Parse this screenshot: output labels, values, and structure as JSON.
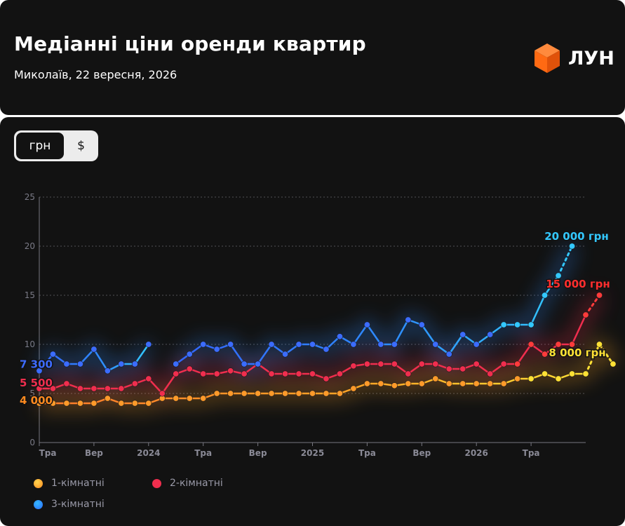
{
  "header": {
    "title": "Медіанні ціни оренди квартир",
    "subtitle": "Миколаїв, 22 вересня, 2026",
    "brand": "ЛУН"
  },
  "toggle": {
    "active_label": "грн",
    "inactive_label": "$"
  },
  "colors": {
    "background": "#121212",
    "one_room": "#FFA726",
    "one_room_alt": "#FFD54F",
    "two_room": "#F02E4E",
    "three_room": "#2E8BFF",
    "three_room_alt": "#33B9FF",
    "logo_orange": "#FF6A13"
  },
  "legend": [
    {
      "label": "1-кімнатні",
      "color": "#FFA726"
    },
    {
      "label": "2-кімнатні",
      "color": "#F02E4E"
    },
    {
      "label": "3-кімнатні",
      "color": "#2E8BFF"
    }
  ],
  "chart_data": {
    "type": "line",
    "ylim": [
      0,
      25
    ],
    "yticks": [
      "0",
      "5",
      "10",
      "15",
      "20",
      "25"
    ],
    "grid": true,
    "legend_position": "bottom-left",
    "xticks": [
      "Тра",
      "Вер",
      "2024",
      "Тра",
      "Вер",
      "2025",
      "Тра",
      "Вер",
      "2026",
      "Тра"
    ],
    "series": [
      {
        "name": "1-кімнатні",
        "values": [
          4,
          4,
          4,
          4,
          4,
          4.5,
          4,
          4,
          4,
          4.5,
          4.5,
          4.5,
          4.5,
          5,
          5,
          5,
          5,
          5,
          5,
          5,
          5,
          5,
          5,
          5.5,
          6,
          6,
          5.8,
          6,
          6,
          6.5,
          6,
          6,
          6,
          6,
          6,
          6.5,
          6.5,
          7,
          6.5,
          7,
          7,
          10,
          8
        ],
        "start_label": "4 000",
        "end_label": "8 000 грн"
      },
      {
        "name": "2-кімнатні",
        "values": [
          5.5,
          5.5,
          6,
          5.5,
          5.5,
          5.5,
          5.5,
          6,
          6.5,
          5,
          7,
          7.5,
          7,
          7,
          7.3,
          7,
          8,
          7,
          7,
          7,
          7,
          6.5,
          7,
          7.8,
          8,
          8,
          8,
          7,
          8,
          8,
          7.5,
          7.5,
          8,
          7,
          8,
          8,
          10,
          9,
          10,
          10,
          13,
          15
        ],
        "start_label": "5 500",
        "end_label": "15 000 грн"
      },
      {
        "name": "3-кімнатні",
        "values": [
          7.3,
          9,
          8,
          8,
          9.5,
          7.3,
          8,
          8,
          10,
          null,
          8,
          9,
          10,
          9.5,
          10,
          8,
          8,
          10,
          9,
          10,
          10,
          9.5,
          10.8,
          10,
          12,
          10,
          10,
          12.5,
          12,
          10,
          9,
          11,
          10,
          11,
          12,
          12,
          12,
          15,
          17,
          20
        ],
        "start_label": "7 300",
        "end_label": "20 000 грн"
      }
    ]
  }
}
